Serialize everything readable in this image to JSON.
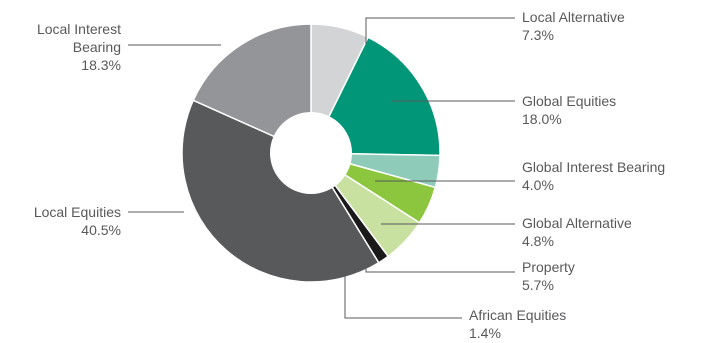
{
  "chart_data": {
    "type": "pie",
    "style": "donut",
    "start": "top",
    "direction": "clockwise",
    "slices": [
      {
        "label": [
          "Local Alternative"
        ],
        "value_label": "7.3%",
        "value": 7.3,
        "color": "#d3d4d5"
      },
      {
        "label": [
          "Global Equities"
        ],
        "value_label": "18.0%",
        "value": 18.0,
        "color": "#009677"
      },
      {
        "label": [
          "Global Interest Bearing"
        ],
        "value_label": "4.0%",
        "value": 4.0,
        "color": "#8fcbb9"
      },
      {
        "label": [
          "Global Alternative"
        ],
        "value_label": "4.8%",
        "value": 4.8,
        "color": "#8cc63f"
      },
      {
        "label": [
          "Property"
        ],
        "value_label": "5.7%",
        "value": 5.7,
        "color": "#c8e1a0"
      },
      {
        "label": [
          "African Equities"
        ],
        "value_label": "1.4%",
        "value": 1.4,
        "color": "#1a1a1a"
      },
      {
        "label": [
          "Local Equities"
        ],
        "value_label": "40.5%",
        "value": 40.5,
        "color": "#58595b"
      },
      {
        "label": [
          "Local Interest",
          "Bearing"
        ],
        "value_label": "18.3%",
        "value": 18.3,
        "color": "#939598"
      }
    ]
  }
}
